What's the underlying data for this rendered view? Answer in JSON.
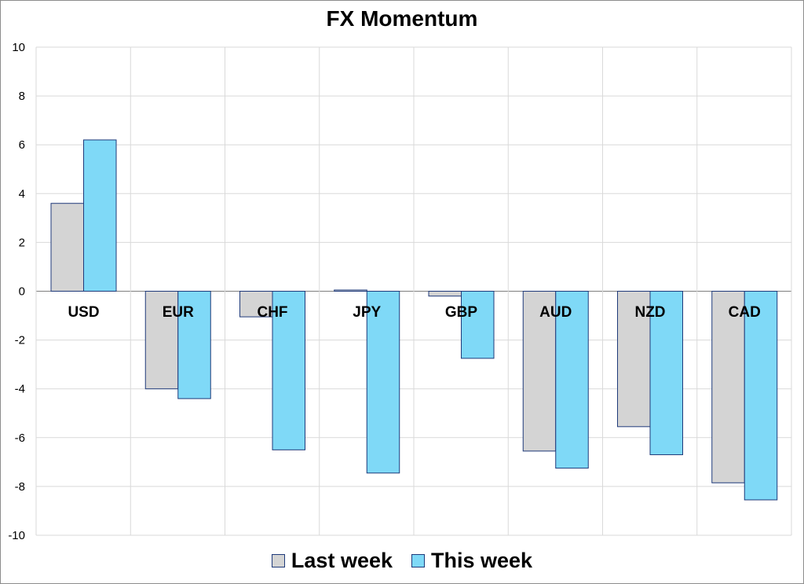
{
  "chart_data": {
    "type": "bar",
    "title": "FX Momentum",
    "xlabel": "",
    "ylabel": "",
    "categories": [
      "USD",
      "EUR",
      "CHF",
      "JPY",
      "GBP",
      "AUD",
      "NZD",
      "CAD"
    ],
    "series": [
      {
        "name": "Last week",
        "color": "#d4d4d4",
        "values": [
          3.6,
          -4.0,
          -1.05,
          0.05,
          -0.2,
          -6.55,
          -5.55,
          -7.85
        ]
      },
      {
        "name": "This week",
        "color": "#7fd9f7",
        "values": [
          6.2,
          -4.4,
          -6.5,
          -7.45,
          -2.75,
          -7.25,
          -6.7,
          -8.55
        ]
      }
    ],
    "ylim": [
      -10,
      10
    ],
    "yticks": [
      10,
      8,
      6,
      4,
      2,
      0,
      -2,
      -4,
      -6,
      -8,
      -10
    ],
    "grid": true,
    "legend_position": "bottom",
    "bar_border_color": "#1f3a7a"
  }
}
